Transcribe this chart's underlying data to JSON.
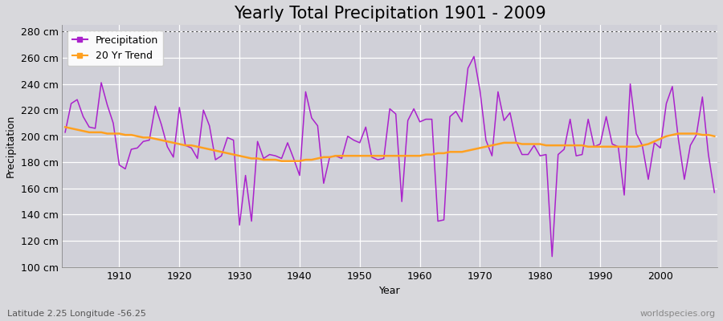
{
  "title": "Yearly Total Precipitation 1901 - 2009",
  "xlabel": "Year",
  "ylabel": "Precipitation",
  "subtitle": "Latitude 2.25 Longitude -56.25",
  "watermark": "worldspecies.org",
  "years": [
    1901,
    1902,
    1903,
    1904,
    1905,
    1906,
    1907,
    1908,
    1909,
    1910,
    1911,
    1912,
    1913,
    1914,
    1915,
    1916,
    1917,
    1918,
    1919,
    1920,
    1921,
    1922,
    1923,
    1924,
    1925,
    1926,
    1927,
    1928,
    1929,
    1930,
    1931,
    1932,
    1933,
    1934,
    1935,
    1936,
    1937,
    1938,
    1939,
    1940,
    1941,
    1942,
    1943,
    1944,
    1945,
    1946,
    1947,
    1948,
    1949,
    1950,
    1951,
    1952,
    1953,
    1954,
    1955,
    1956,
    1957,
    1958,
    1959,
    1960,
    1961,
    1962,
    1963,
    1964,
    1965,
    1966,
    1967,
    1968,
    1969,
    1970,
    1971,
    1972,
    1973,
    1974,
    1975,
    1976,
    1977,
    1978,
    1979,
    1980,
    1981,
    1982,
    1983,
    1984,
    1985,
    1986,
    1987,
    1988,
    1989,
    1990,
    1991,
    1992,
    1993,
    1994,
    1995,
    1996,
    1997,
    1998,
    1999,
    2000,
    2001,
    2002,
    2003,
    2004,
    2005,
    2006,
    2007,
    2008,
    2009
  ],
  "precip": [
    203,
    225,
    228,
    215,
    207,
    206,
    241,
    224,
    210,
    178,
    175,
    190,
    191,
    196,
    197,
    223,
    209,
    192,
    184,
    222,
    193,
    191,
    183,
    220,
    208,
    182,
    185,
    199,
    197,
    132,
    170,
    135,
    196,
    183,
    186,
    185,
    183,
    195,
    183,
    170,
    234,
    214,
    208,
    164,
    184,
    185,
    183,
    200,
    197,
    195,
    207,
    184,
    182,
    183,
    221,
    217,
    150,
    212,
    221,
    211,
    213,
    213,
    135,
    136,
    215,
    219,
    211,
    252,
    261,
    235,
    197,
    185,
    234,
    212,
    218,
    196,
    186,
    186,
    193,
    185,
    186,
    108,
    186,
    190,
    213,
    185,
    186,
    213,
    192,
    194,
    215,
    194,
    192,
    155,
    240,
    202,
    193,
    167,
    195,
    191,
    225,
    238,
    198,
    167,
    193,
    201,
    230,
    186,
    157
  ],
  "trend": [
    207,
    206,
    205,
    204,
    203,
    203,
    203,
    202,
    202,
    202,
    201,
    201,
    200,
    199,
    199,
    198,
    197,
    196,
    195,
    194,
    193,
    193,
    192,
    191,
    190,
    189,
    188,
    187,
    186,
    185,
    184,
    183,
    183,
    182,
    182,
    182,
    181,
    181,
    181,
    181,
    182,
    182,
    183,
    184,
    184,
    185,
    185,
    185,
    185,
    185,
    185,
    185,
    185,
    185,
    185,
    185,
    185,
    185,
    185,
    185,
    186,
    186,
    187,
    187,
    188,
    188,
    188,
    189,
    190,
    191,
    192,
    193,
    194,
    195,
    195,
    195,
    194,
    194,
    194,
    194,
    193,
    193,
    193,
    193,
    193,
    193,
    193,
    192,
    192,
    192,
    192,
    192,
    192,
    192,
    192,
    192,
    193,
    194,
    196,
    198,
    200,
    201,
    202,
    202,
    202,
    202,
    201,
    201,
    200
  ],
  "ylim": [
    100,
    285
  ],
  "yticks": [
    100,
    120,
    140,
    160,
    180,
    200,
    220,
    240,
    260,
    280
  ],
  "ytick_labels": [
    "100 cm",
    "120 cm",
    "140 cm",
    "160 cm",
    "180 cm",
    "200 cm",
    "220 cm",
    "240 cm",
    "260 cm",
    "280 cm"
  ],
  "xticks": [
    1910,
    1920,
    1930,
    1940,
    1950,
    1960,
    1970,
    1980,
    1990,
    2000
  ],
  "precip_color": "#AA22CC",
  "trend_color": "#FFA020",
  "bg_color": "#D8D8DC",
  "plot_bg_color": "#D0D0D8",
  "grid_color": "#FFFFFF",
  "title_fontsize": 15,
  "label_fontsize": 9,
  "tick_fontsize": 9
}
